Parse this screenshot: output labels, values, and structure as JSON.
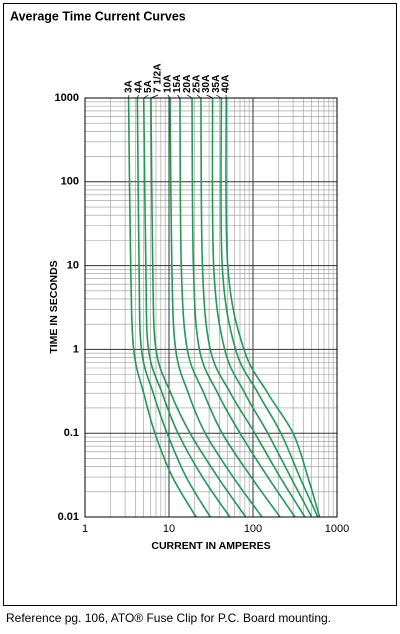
{
  "chart_data": {
    "type": "line",
    "title": "Average Time Current Curves",
    "x_label": "CURRENT IN AMPERES",
    "y_label": "TIME IN SECONDS",
    "x_log": true,
    "y_log": true,
    "grid": true,
    "minor_grid": true,
    "xlim": [
      1,
      1000
    ],
    "ylim": [
      0.01,
      1000
    ],
    "xticks": [
      1,
      10,
      100,
      1000
    ],
    "yticks": [
      0.01,
      0.1,
      1,
      10,
      100,
      1000
    ],
    "series": [
      {
        "name": "3A",
        "color": "#1f9a55",
        "x": [
          3.3,
          3.5,
          3.8,
          5.0,
          6.8,
          11,
          21
        ],
        "values": [
          1000,
          10,
          1,
          0.3,
          0.1,
          0.03,
          0.01
        ]
      },
      {
        "name": "4A",
        "color": "#1f9a55",
        "x": [
          4.2,
          4.4,
          4.7,
          6.5,
          9.5,
          16,
          31
        ],
        "values": [
          1000,
          10,
          1,
          0.3,
          0.1,
          0.03,
          0.01
        ]
      },
      {
        "name": "5A",
        "color": "#1f9a55",
        "x": [
          5.0,
          5.3,
          5.7,
          8.3,
          12.8,
          25,
          53
        ],
        "values": [
          1000,
          10,
          1,
          0.3,
          0.1,
          0.03,
          0.01
        ]
      },
      {
        "name": "7 1/2A",
        "color": "#1f9a55",
        "x": [
          6.1,
          6.4,
          7.0,
          10.5,
          17.8,
          38,
          82
        ],
        "values": [
          1000,
          10,
          1,
          0.3,
          0.1,
          0.03,
          0.01
        ]
      },
      {
        "name": "10A",
        "color": "#1f9a55",
        "x": [
          10.3,
          10.8,
          12,
          17,
          27,
          58,
          128
        ],
        "values": [
          1000,
          10,
          1,
          0.3,
          0.1,
          0.03,
          0.01
        ]
      },
      {
        "name": "15A",
        "color": "#1f9a55",
        "x": [
          13.5,
          14,
          16.5,
          26,
          43,
          95,
          210
        ],
        "values": [
          1000,
          10,
          1,
          0.3,
          0.1,
          0.03,
          0.01
        ]
      },
      {
        "name": "20A",
        "color": "#1f9a55",
        "x": [
          18.8,
          19.5,
          23,
          38,
          70,
          150,
          316
        ],
        "values": [
          1000,
          10,
          1,
          0.3,
          0.1,
          0.03,
          0.01
        ]
      },
      {
        "name": "25A",
        "color": "#1f9a55",
        "x": [
          24,
          25,
          31,
          54,
          105,
          210,
          415
        ],
        "values": [
          1000,
          10,
          1,
          0.3,
          0.1,
          0.03,
          0.01
        ]
      },
      {
        "name": "30A",
        "color": "#1f9a55",
        "x": [
          33,
          34,
          46,
          80,
          150,
          280,
          500
        ],
        "values": [
          1000,
          10,
          1,
          0.3,
          0.1,
          0.03,
          0.01
        ]
      },
      {
        "name": "35A",
        "color": "#1f9a55",
        "x": [
          42,
          43,
          62,
          115,
          215,
          360,
          590
        ],
        "values": [
          1000,
          10,
          1,
          0.3,
          0.1,
          0.03,
          0.01
        ]
      },
      {
        "name": "40A",
        "color": "#1f9a55",
        "x": [
          48,
          50,
          78,
          150,
          300,
          450,
          620
        ],
        "values": [
          1000,
          10,
          1,
          0.3,
          0.1,
          0.03,
          0.01
        ]
      }
    ],
    "footnote": "Reference pg. 106, ATO® Fuse Clip for P.C. Board mounting."
  }
}
